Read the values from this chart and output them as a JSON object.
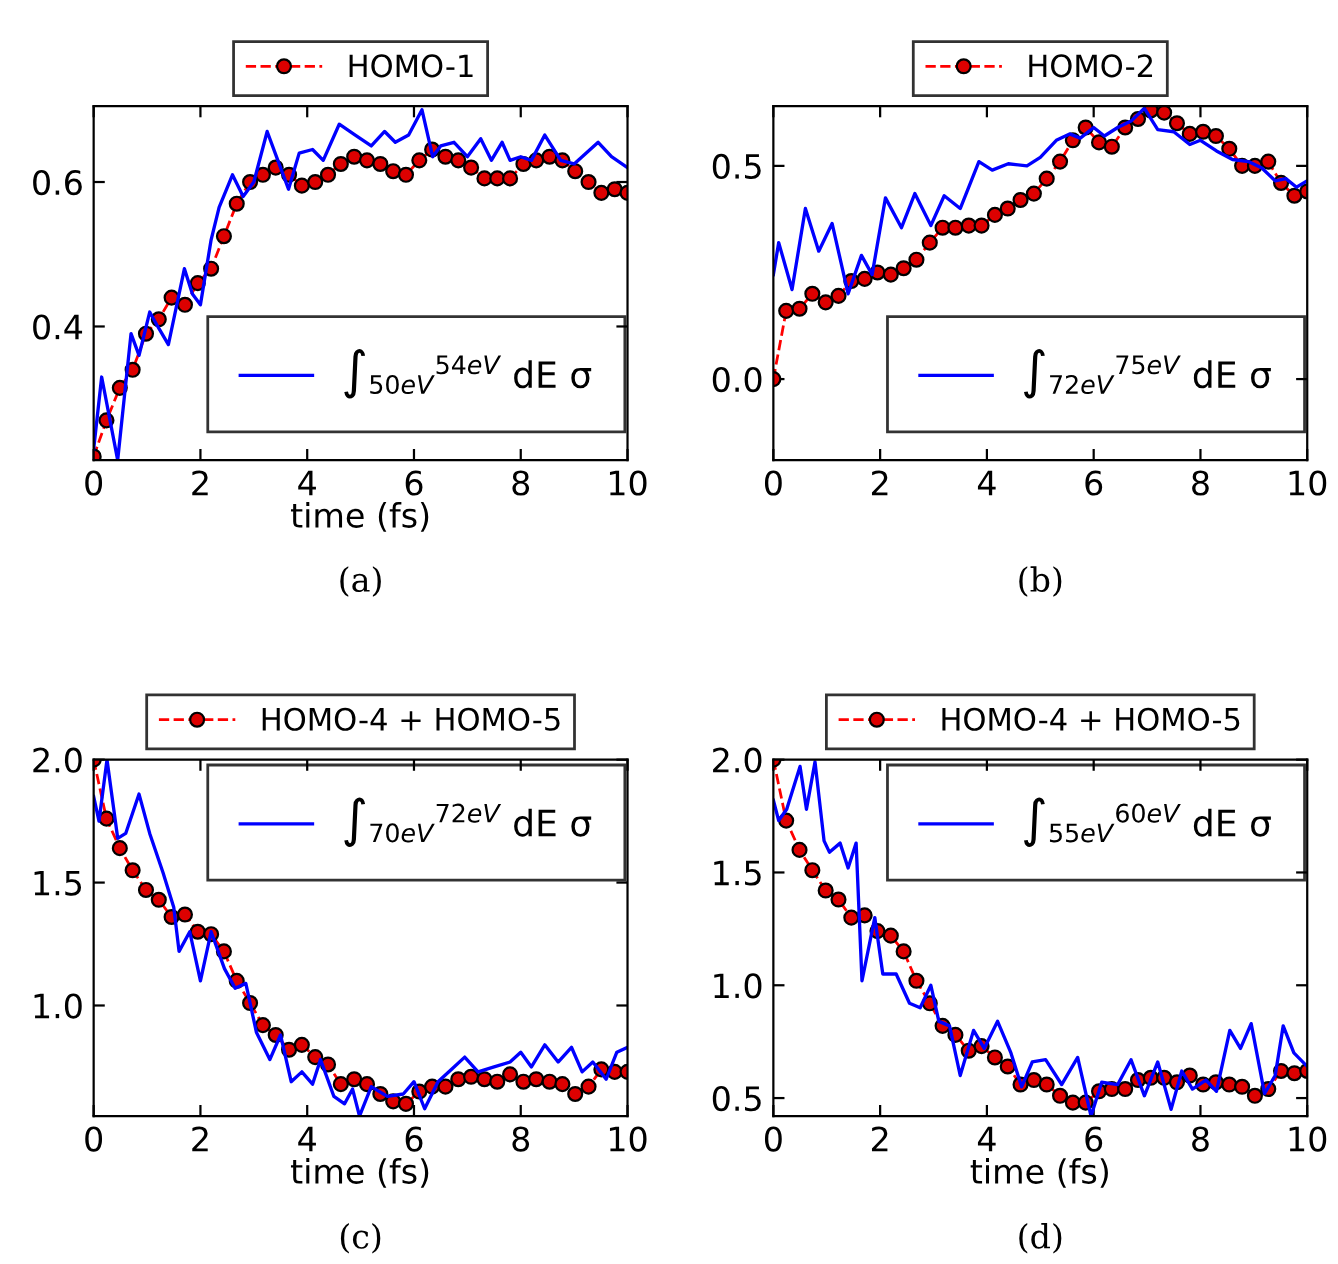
{
  "chart_data": [
    {
      "type": "line",
      "xlabel": "time (fs)",
      "xlim": [
        0,
        10
      ],
      "xticks": [
        0,
        2,
        4,
        6,
        8,
        10
      ],
      "ylim": [
        0.215,
        0.705
      ],
      "yticks": [
        0.4,
        0.6
      ],
      "annotations": [
        "(a)"
      ],
      "grid": false,
      "legend": [
        "top",
        "bottom right"
      ],
      "series": [
        {
          "name": "HOMO-1",
          "color": "#ff0000",
          "marker": "circle",
          "line_style": "dashed",
          "x": [
            0,
            0.24,
            0.49,
            0.73,
            0.98,
            1.22,
            1.46,
            1.71,
            1.95,
            2.2,
            2.44,
            2.68,
            2.93,
            3.17,
            3.41,
            3.66,
            3.9,
            4.15,
            4.39,
            4.63,
            4.88,
            5.12,
            5.37,
            5.61,
            5.85,
            6.1,
            6.34,
            6.59,
            6.83,
            7.07,
            7.32,
            7.56,
            7.8,
            8.05,
            8.29,
            8.54,
            8.78,
            9.02,
            9.27,
            9.51,
            9.76,
            10
          ],
          "values": [
            0.22,
            0.27,
            0.315,
            0.34,
            0.39,
            0.41,
            0.44,
            0.43,
            0.46,
            0.48,
            0.525,
            0.57,
            0.6,
            0.61,
            0.62,
            0.61,
            0.595,
            0.6,
            0.61,
            0.625,
            0.635,
            0.63,
            0.625,
            0.615,
            0.61,
            0.63,
            0.645,
            0.635,
            0.63,
            0.62,
            0.605,
            0.605,
            0.605,
            0.625,
            0.63,
            0.635,
            0.63,
            0.615,
            0.6,
            0.585,
            0.59,
            0.585
          ]
        },
        {
          "name": "∫$_{50eV}$$^{54eV}$ dE σ",
          "color": "#0000ff",
          "marker": "none",
          "line_style": "solid",
          "x": [
            0,
            0.15,
            0.45,
            0.7,
            0.85,
            1.05,
            1.2,
            1.4,
            1.7,
            1.85,
            2.0,
            2.2,
            2.35,
            2.6,
            2.8,
            3.0,
            3.25,
            3.45,
            3.65,
            3.85,
            4.1,
            4.3,
            4.6,
            4.9,
            5.2,
            5.45,
            5.65,
            5.9,
            6.15,
            6.35,
            6.5,
            6.75,
            7.0,
            7.25,
            7.45,
            7.65,
            7.8,
            8.0,
            8.2,
            8.45,
            8.75,
            9.0,
            9.45,
            9.7,
            10
          ],
          "values": [
            0.23,
            0.33,
            0.215,
            0.39,
            0.36,
            0.42,
            0.4,
            0.375,
            0.48,
            0.445,
            0.43,
            0.52,
            0.565,
            0.61,
            0.58,
            0.6,
            0.67,
            0.63,
            0.59,
            0.64,
            0.645,
            0.63,
            0.68,
            0.665,
            0.65,
            0.67,
            0.655,
            0.665,
            0.7,
            0.635,
            0.65,
            0.655,
            0.635,
            0.66,
            0.63,
            0.655,
            0.63,
            0.635,
            0.63,
            0.665,
            0.63,
            0.625,
            0.655,
            0.635,
            0.62
          ]
        }
      ]
    },
    {
      "type": "line",
      "xlim": [
        0,
        10
      ],
      "xticks": [
        0,
        2,
        4,
        6,
        8,
        10
      ],
      "ylim": [
        -0.19,
        0.64
      ],
      "yticks": [
        {
          "value": 0,
          "label": "0.0"
        },
        0.5
      ],
      "annotations": [
        "(b)"
      ],
      "grid": false,
      "legend": [
        "top",
        "bottom right"
      ],
      "series": [
        {
          "name": "HOMO-2",
          "color": "#ff0000",
          "marker": "circle",
          "line_style": "dashed",
          "x": [
            0,
            0.24,
            0.49,
            0.73,
            0.98,
            1.22,
            1.46,
            1.71,
            1.95,
            2.2,
            2.44,
            2.68,
            2.93,
            3.17,
            3.41,
            3.66,
            3.9,
            4.15,
            4.39,
            4.63,
            4.88,
            5.12,
            5.37,
            5.61,
            5.85,
            6.1,
            6.34,
            6.59,
            6.83,
            7.07,
            7.32,
            7.56,
            7.8,
            8.05,
            8.29,
            8.54,
            8.78,
            9.02,
            9.27,
            9.51,
            9.76,
            10
          ],
          "values": [
            0.0,
            0.16,
            0.165,
            0.2,
            0.18,
            0.195,
            0.23,
            0.235,
            0.25,
            0.245,
            0.26,
            0.28,
            0.32,
            0.355,
            0.355,
            0.36,
            0.36,
            0.385,
            0.4,
            0.42,
            0.435,
            0.47,
            0.51,
            0.56,
            0.59,
            0.555,
            0.545,
            0.59,
            0.61,
            0.63,
            0.625,
            0.6,
            0.575,
            0.58,
            0.57,
            0.54,
            0.5,
            0.5,
            0.51,
            0.46,
            0.43,
            0.44
          ]
        },
        {
          "name": "∫$_{72eV}$$^{75eV}$ dE σ",
          "color": "#0000ff",
          "marker": "none",
          "line_style": "solid",
          "x": [
            0,
            0.1,
            0.35,
            0.6,
            0.85,
            1.1,
            1.4,
            1.65,
            1.85,
            2.1,
            2.4,
            2.65,
            2.95,
            3.2,
            3.5,
            3.85,
            4.1,
            4.4,
            4.75,
            5.0,
            5.3,
            5.55,
            5.75,
            6.0,
            6.2,
            6.45,
            6.7,
            6.95,
            7.2,
            7.5,
            7.8,
            8.0,
            8.3,
            8.6,
            8.9,
            9.15,
            9.4,
            9.6,
            9.8,
            10
          ],
          "values": [
            0.245,
            0.32,
            0.21,
            0.4,
            0.3,
            0.365,
            0.2,
            0.29,
            0.245,
            0.425,
            0.355,
            0.435,
            0.36,
            0.43,
            0.4,
            0.51,
            0.49,
            0.505,
            0.5,
            0.52,
            0.56,
            0.575,
            0.565,
            0.59,
            0.57,
            0.59,
            0.605,
            0.635,
            0.585,
            0.58,
            0.55,
            0.56,
            0.535,
            0.515,
            0.51,
            0.495,
            0.465,
            0.47,
            0.45,
            0.465
          ]
        }
      ]
    },
    {
      "type": "line",
      "xlabel": "time (fs)",
      "xlim": [
        0,
        10
      ],
      "xticks": [
        0,
        2,
        4,
        6,
        8,
        10
      ],
      "ylim": [
        0.55,
        2.0
      ],
      "yticks": [
        {
          "value": 1,
          "label": "1.0"
        },
        1.5,
        {
          "value": 2,
          "label": "2.0"
        }
      ],
      "annotations": [
        "(c)"
      ],
      "grid": false,
      "legend": [
        "top",
        "top right"
      ],
      "series": [
        {
          "name": "HOMO-4 + HOMO-5",
          "color": "#ff0000",
          "marker": "circle",
          "line_style": "dashed",
          "x": [
            0,
            0.24,
            0.49,
            0.73,
            0.98,
            1.22,
            1.46,
            1.71,
            1.95,
            2.2,
            2.44,
            2.68,
            2.93,
            3.17,
            3.41,
            3.66,
            3.9,
            4.15,
            4.39,
            4.63,
            4.88,
            5.12,
            5.37,
            5.61,
            5.85,
            6.1,
            6.34,
            6.59,
            6.83,
            7.07,
            7.32,
            7.56,
            7.8,
            8.05,
            8.29,
            8.54,
            8.78,
            9.02,
            9.27,
            9.51,
            9.76,
            10
          ],
          "values": [
            2.0,
            1.76,
            1.64,
            1.55,
            1.47,
            1.43,
            1.36,
            1.37,
            1.3,
            1.29,
            1.22,
            1.1,
            1.01,
            0.92,
            0.88,
            0.82,
            0.84,
            0.79,
            0.76,
            0.68,
            0.7,
            0.68,
            0.64,
            0.61,
            0.6,
            0.65,
            0.67,
            0.67,
            0.7,
            0.71,
            0.7,
            0.69,
            0.72,
            0.69,
            0.7,
            0.69,
            0.68,
            0.64,
            0.67,
            0.74,
            0.73,
            0.73
          ]
        },
        {
          "name": "∫$_{70eV}$$^{72eV}$ dE σ",
          "color": "#0000ff",
          "marker": "none",
          "line_style": "solid",
          "x": [
            0,
            0.1,
            0.25,
            0.45,
            0.6,
            0.85,
            1.05,
            1.3,
            1.5,
            1.6,
            1.8,
            2.0,
            2.2,
            2.45,
            2.65,
            2.85,
            3.05,
            3.3,
            3.5,
            3.7,
            3.9,
            4.1,
            4.25,
            4.5,
            4.7,
            4.85,
            4.98,
            5.2,
            5.5,
            5.8,
            6.0,
            6.2,
            6.45,
            6.7,
            6.95,
            7.2,
            7.5,
            7.8,
            8.0,
            8.2,
            8.45,
            8.7,
            8.95,
            9.15,
            9.35,
            9.6,
            9.8,
            10
          ],
          "values": [
            1.85,
            1.75,
            2.0,
            1.68,
            1.7,
            1.86,
            1.7,
            1.54,
            1.4,
            1.22,
            1.3,
            1.1,
            1.3,
            1.15,
            1.07,
            1.09,
            0.89,
            0.78,
            0.88,
            0.69,
            0.73,
            0.68,
            0.78,
            0.63,
            0.6,
            0.66,
            0.55,
            0.67,
            0.63,
            0.64,
            0.69,
            0.58,
            0.69,
            0.74,
            0.79,
            0.73,
            0.75,
            0.77,
            0.81,
            0.75,
            0.84,
            0.77,
            0.83,
            0.73,
            0.77,
            0.7,
            0.81,
            0.83
          ]
        }
      ]
    },
    {
      "type": "line",
      "xlabel": "time (fs)",
      "xlim": [
        0,
        10
      ],
      "xticks": [
        0,
        2,
        4,
        6,
        8,
        10
      ],
      "ylim": [
        0.42,
        2.0
      ],
      "yticks": [
        0.5,
        {
          "value": 1,
          "label": "1.0"
        },
        1.5,
        {
          "value": 2,
          "label": "2.0"
        }
      ],
      "annotations": [
        "(d)"
      ],
      "grid": false,
      "legend": [
        "top",
        "top right"
      ],
      "series": [
        {
          "name": "HOMO-4 + HOMO-5",
          "color": "#ff0000",
          "marker": "circle",
          "line_style": "dashed",
          "x": [
            0,
            0.24,
            0.49,
            0.73,
            0.98,
            1.22,
            1.46,
            1.71,
            1.95,
            2.2,
            2.44,
            2.68,
            2.93,
            3.17,
            3.41,
            3.66,
            3.9,
            4.15,
            4.39,
            4.63,
            4.88,
            5.12,
            5.37,
            5.61,
            5.85,
            6.1,
            6.34,
            6.59,
            6.83,
            7.07,
            7.32,
            7.56,
            7.8,
            8.05,
            8.29,
            8.54,
            8.78,
            9.02,
            9.27,
            9.51,
            9.76,
            10
          ],
          "values": [
            2.0,
            1.73,
            1.6,
            1.51,
            1.42,
            1.38,
            1.3,
            1.31,
            1.24,
            1.22,
            1.15,
            1.02,
            0.92,
            0.82,
            0.78,
            0.71,
            0.73,
            0.68,
            0.64,
            0.56,
            0.58,
            0.56,
            0.51,
            0.48,
            0.48,
            0.53,
            0.54,
            0.54,
            0.58,
            0.59,
            0.59,
            0.57,
            0.6,
            0.56,
            0.57,
            0.56,
            0.55,
            0.51,
            0.54,
            0.62,
            0.61,
            0.62
          ]
        },
        {
          "name": "∫$_{55eV}$$^{60eV}$ dE σ",
          "color": "#0000ff",
          "marker": "none",
          "line_style": "solid",
          "x": [
            0,
            0.1,
            0.25,
            0.5,
            0.62,
            0.78,
            0.95,
            1.05,
            1.25,
            1.4,
            1.55,
            1.66,
            1.9,
            2.05,
            2.3,
            2.55,
            2.75,
            2.95,
            3.1,
            3.3,
            3.5,
            3.75,
            3.95,
            4.2,
            4.45,
            4.65,
            4.85,
            5.1,
            5.4,
            5.7,
            5.95,
            6.15,
            6.45,
            6.7,
            6.95,
            7.2,
            7.45,
            7.65,
            7.85,
            8.1,
            8.3,
            8.55,
            8.75,
            8.95,
            9.2,
            9.4,
            9.55,
            9.75,
            10
          ],
          "values": [
            1.82,
            1.73,
            1.78,
            1.97,
            1.78,
            1.99,
            1.64,
            1.59,
            1.63,
            1.52,
            1.63,
            1.02,
            1.3,
            1.05,
            1.05,
            0.92,
            0.9,
            1.0,
            0.84,
            0.82,
            0.6,
            0.8,
            0.72,
            0.84,
            0.7,
            0.55,
            0.66,
            0.67,
            0.56,
            0.68,
            0.42,
            0.57,
            0.56,
            0.67,
            0.51,
            0.66,
            0.45,
            0.62,
            0.54,
            0.58,
            0.53,
            0.8,
            0.72,
            0.83,
            0.52,
            0.6,
            0.82,
            0.7,
            0.64
          ]
        }
      ]
    }
  ]
}
